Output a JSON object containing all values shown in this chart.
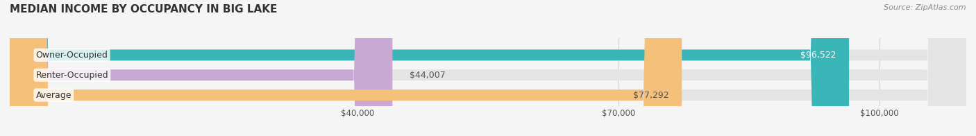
{
  "title": "MEDIAN INCOME BY OCCUPANCY IN BIG LAKE",
  "source": "Source: ZipAtlas.com",
  "categories": [
    "Owner-Occupied",
    "Renter-Occupied",
    "Average"
  ],
  "values": [
    96522,
    44007,
    77292
  ],
  "bar_colors": [
    "#3ab5b8",
    "#c9a8d4",
    "#f5c07a"
  ],
  "bar_labels": [
    "$96,522",
    "$44,007",
    "$77,292"
  ],
  "label_colors": [
    "#ffffff",
    "#555555",
    "#555555"
  ],
  "xmin": 0,
  "xmax": 110000,
  "xticks": [
    40000,
    70000,
    100000
  ],
  "xticklabels": [
    "$40,000",
    "$70,000",
    "$100,000"
  ],
  "background_color": "#f5f5f5",
  "bar_bg_color": "#e4e4e4",
  "title_fontsize": 11,
  "label_fontsize": 9,
  "tick_fontsize": 8.5,
  "source_fontsize": 8
}
